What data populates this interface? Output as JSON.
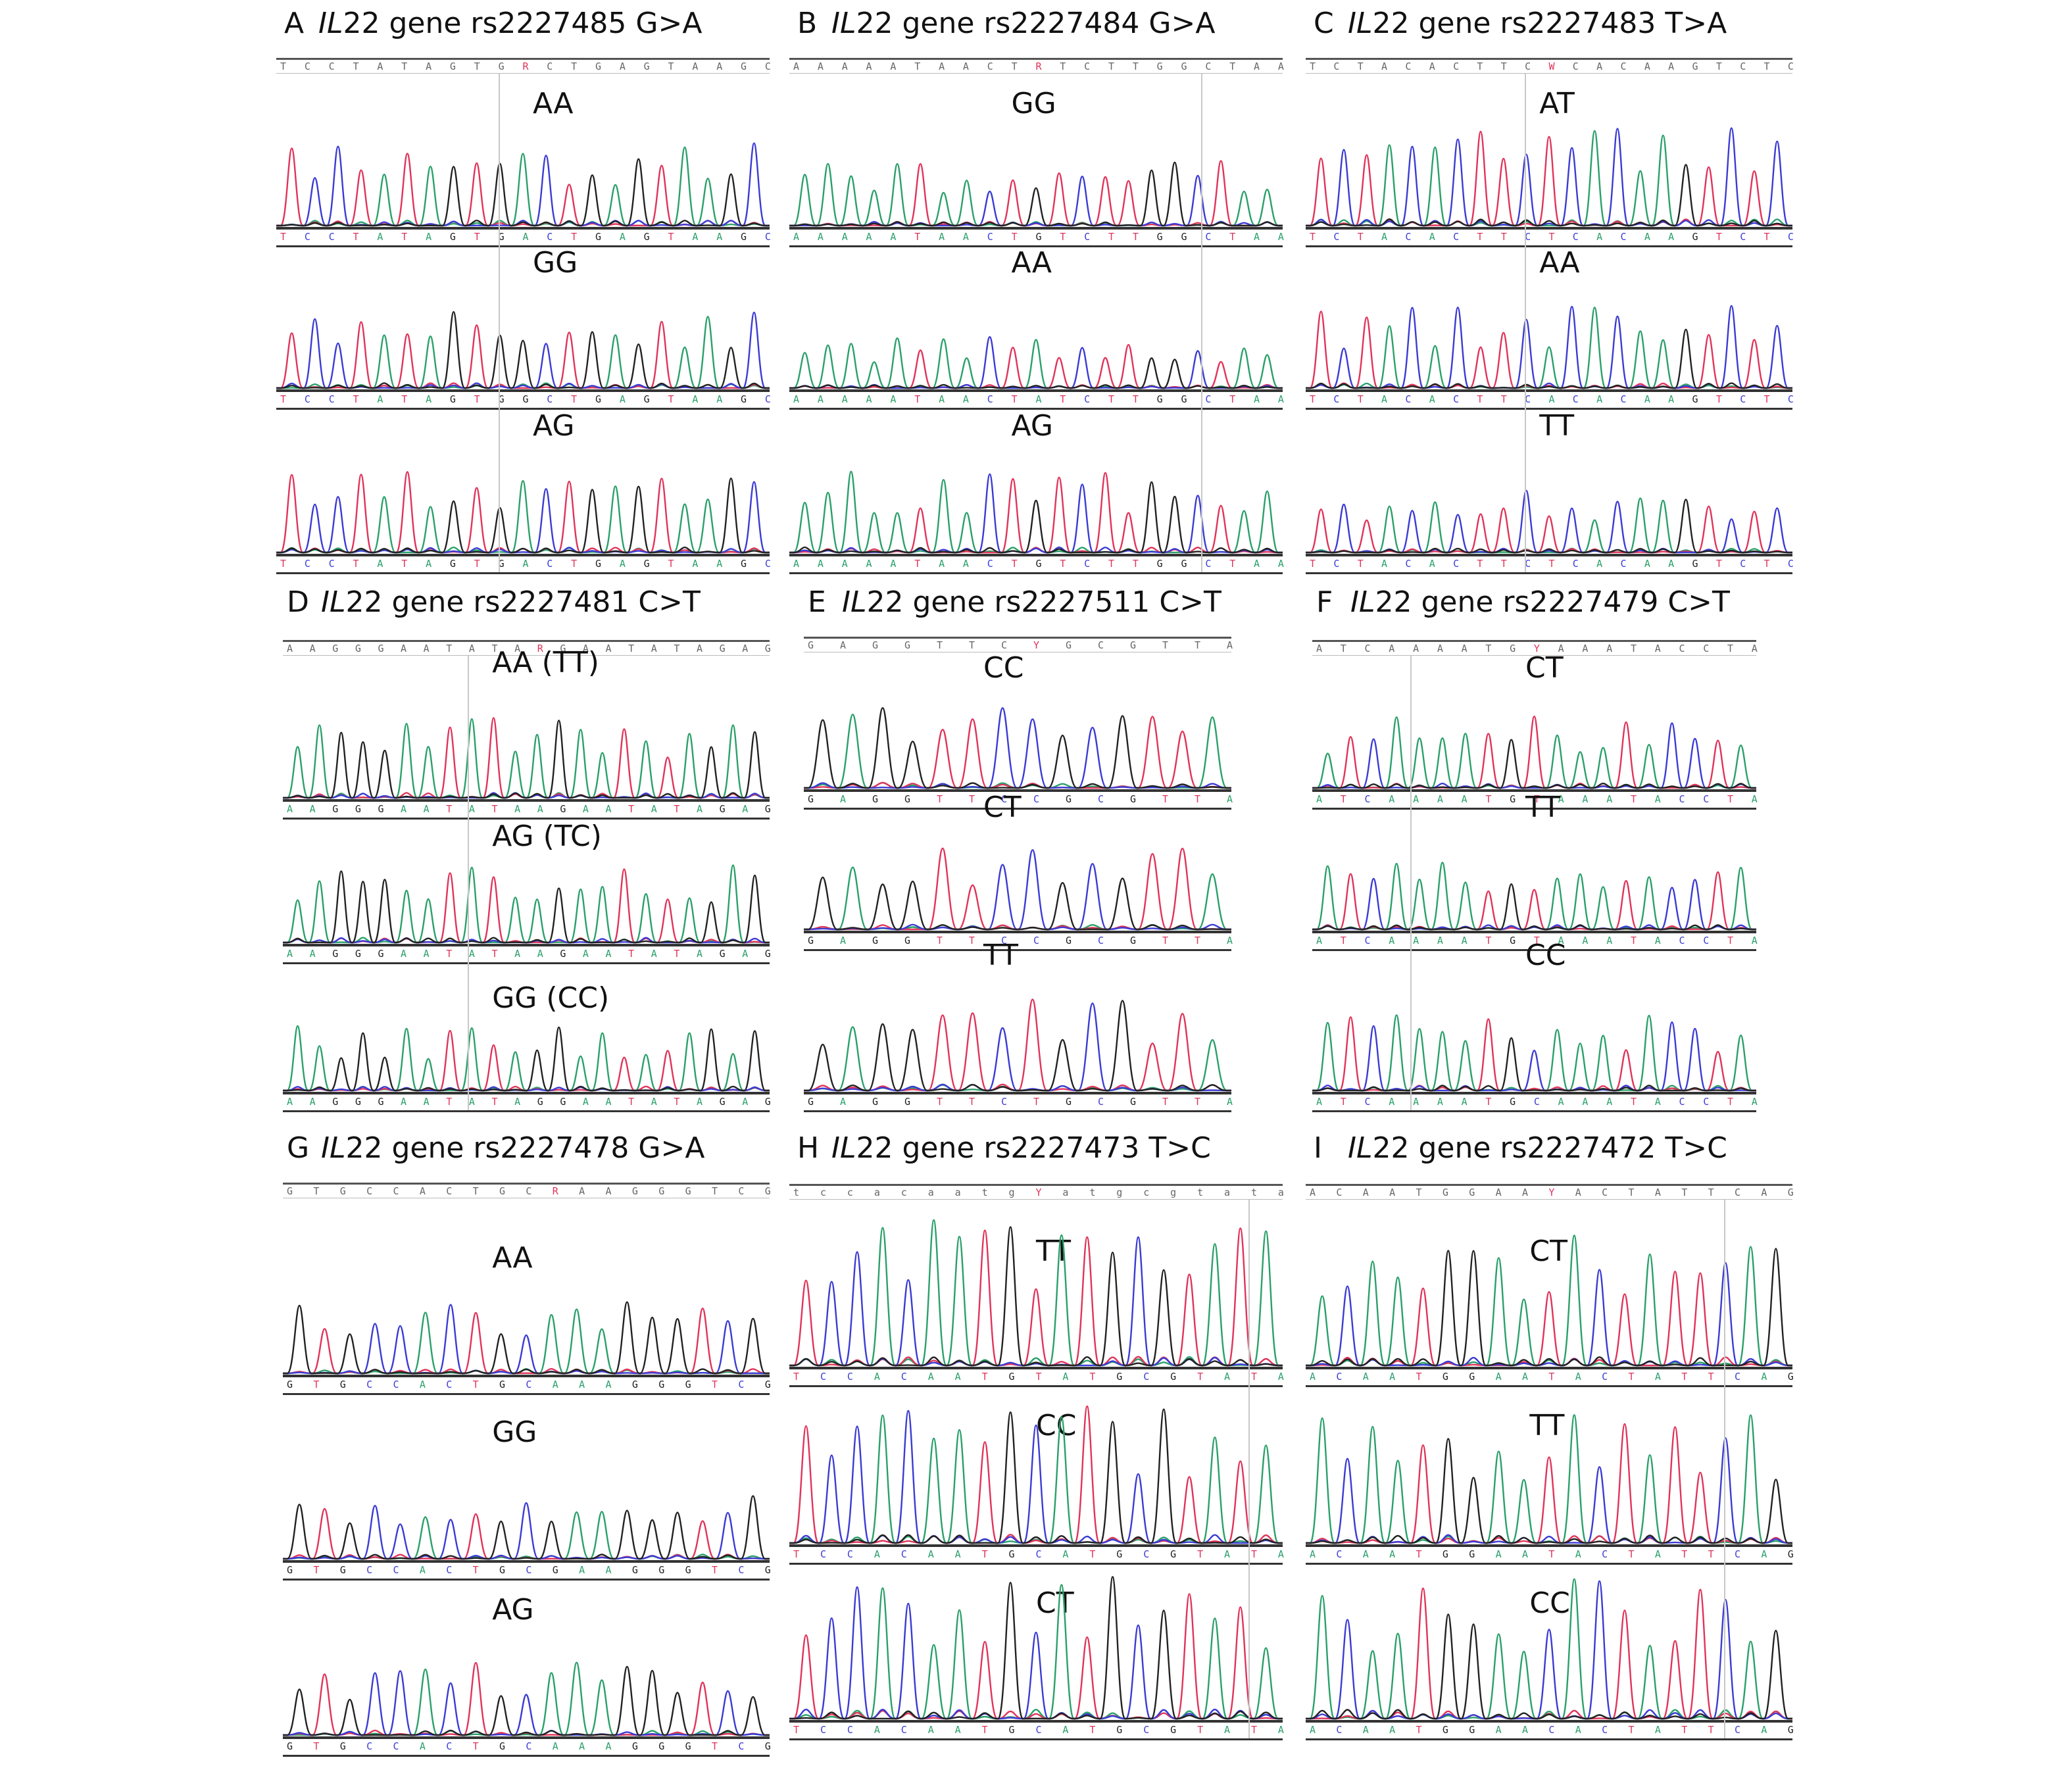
{
  "panels": [
    {
      "id": "A",
      "letter": "A",
      "gene": "IL",
      "title_rest": "22 gene rs2227485 G>A",
      "ref_seq": "TCCTATAGTGRCTGAGTAAGC",
      "tracks": [
        {
          "genotype": "AA",
          "seq": "TCCTATAGTGACTGAGTAAGC"
        },
        {
          "genotype": "GG",
          "seq": "TCCTATAGTGGCTGAGTAAGC"
        },
        {
          "genotype": "AG",
          "seq": "TCCTATAGTGACTGAGTAAGC"
        }
      ]
    },
    {
      "id": "B",
      "letter": "B",
      "gene": "IL",
      "title_rest": "22 gene rs2227484 G>A",
      "ref_seq": "AAAAATAACTRTCTTGGCTAA",
      "tracks": [
        {
          "genotype": "GG",
          "seq": "AAAAATAACTGTCTTGGCTAA"
        },
        {
          "genotype": "AA",
          "seq": "AAAAATAACTATCTTGGCTAA"
        },
        {
          "genotype": "AG",
          "seq": "AAAAATAACTGTCTTGGCTAA"
        }
      ]
    },
    {
      "id": "C",
      "letter": "C",
      "gene": "IL",
      "title_rest": "22 gene rs2227483 T>A",
      "ref_seq": "TCTACACTTCWCACAAGTCTC",
      "tracks": [
        {
          "genotype": "AT",
          "seq": "TCTACACTTCTCACAAGTCTC"
        },
        {
          "genotype": "AA",
          "seq": "TCTACACTTCACACAAGTCTC"
        },
        {
          "genotype": "TT",
          "seq": "TCTACACTTCTCACAAGTCTC"
        }
      ]
    },
    {
      "id": "D",
      "letter": "D",
      "gene": "IL",
      "title_rest": "22 gene rs2227481 C>T",
      "ref_seq": "AAGGGAATATARGAATATAGAG",
      "tracks": [
        {
          "genotype": "AA (TT)",
          "seq": "AAGGGAATATAAGAATATAGAG"
        },
        {
          "genotype": "AG (TC)",
          "seq": "AAGGGAATATAAGAATATAGAG"
        },
        {
          "genotype": "GG (CC)",
          "seq": "AAGGGAATATAGGAATATAGAG"
        }
      ]
    },
    {
      "id": "E",
      "letter": "E",
      "gene": "IL",
      "title_rest": "22 gene rs2227511 C>T",
      "ref_seq": "GAGGTTCYGCGTTA",
      "tracks": [
        {
          "genotype": "CC",
          "seq": "GAGGTTCCGCGTTA"
        },
        {
          "genotype": "CT",
          "seq": "GAGGTTCCGCGTTA"
        },
        {
          "genotype": "TT",
          "seq": "GAGGTTCTGCGTTA"
        }
      ]
    },
    {
      "id": "F",
      "letter": "F",
      "gene": "IL",
      "title_rest": "22 gene rs2227479 C>T",
      "ref_seq": "ATCAAAATGYAAATACCTA",
      "tracks": [
        {
          "genotype": "CT",
          "seq": "ATCAAAATGTAAATACCTA"
        },
        {
          "genotype": "TT",
          "seq": "ATCAAAATGTAAATACCTA"
        },
        {
          "genotype": "CC",
          "seq": "ATCAAAATGCAAATACCTA"
        }
      ]
    },
    {
      "id": "G",
      "letter": "G",
      "gene": "IL",
      "title_rest": "22 gene rs2227478 G>A",
      "ref_seq": "GTGCCACTGCRAAGGGTCG",
      "tracks": [
        {
          "genotype": "AA",
          "seq": "GTGCCACTGCAAAGGGTCG"
        },
        {
          "genotype": "GG",
          "seq": "GTGCCACTGCGAAGGGTCG"
        },
        {
          "genotype": "AG",
          "seq": "GTGCCACTGCAAAGGGTCG"
        }
      ]
    },
    {
      "id": "H",
      "letter": "H",
      "gene": "IL",
      "title_rest": "22 gene rs2227473 T>C",
      "ref_seq": "tccacaatgYatgcgtata",
      "tracks": [
        {
          "genotype": "TT",
          "seq": "TCCACAATGTATGCGTATA"
        },
        {
          "genotype": "CC",
          "seq": "TCCACAATGCATGCGTATA"
        },
        {
          "genotype": "CT",
          "seq": "TCCACAATGCATGCGTATA"
        }
      ]
    },
    {
      "id": "I",
      "letter": "I",
      "gene": "IL",
      "title_rest": "22 gene rs2227472 T>C",
      "ref_seq": "ACAATGGAAYACTATTCAG",
      "tracks": [
        {
          "genotype": "CT",
          "seq": "ACAATGGAATACTATTCAG"
        },
        {
          "genotype": "TT",
          "seq": "ACAATGGAATACTATTCAG"
        },
        {
          "genotype": "CC",
          "seq": "ACAATGGAACACTATTCAG"
        }
      ]
    }
  ],
  "colors": {
    "A": "#2aa06a",
    "T": "#e0345a",
    "C": "#3b3bd4",
    "G": "#222222",
    "marker": "#c8c8c8"
  }
}
